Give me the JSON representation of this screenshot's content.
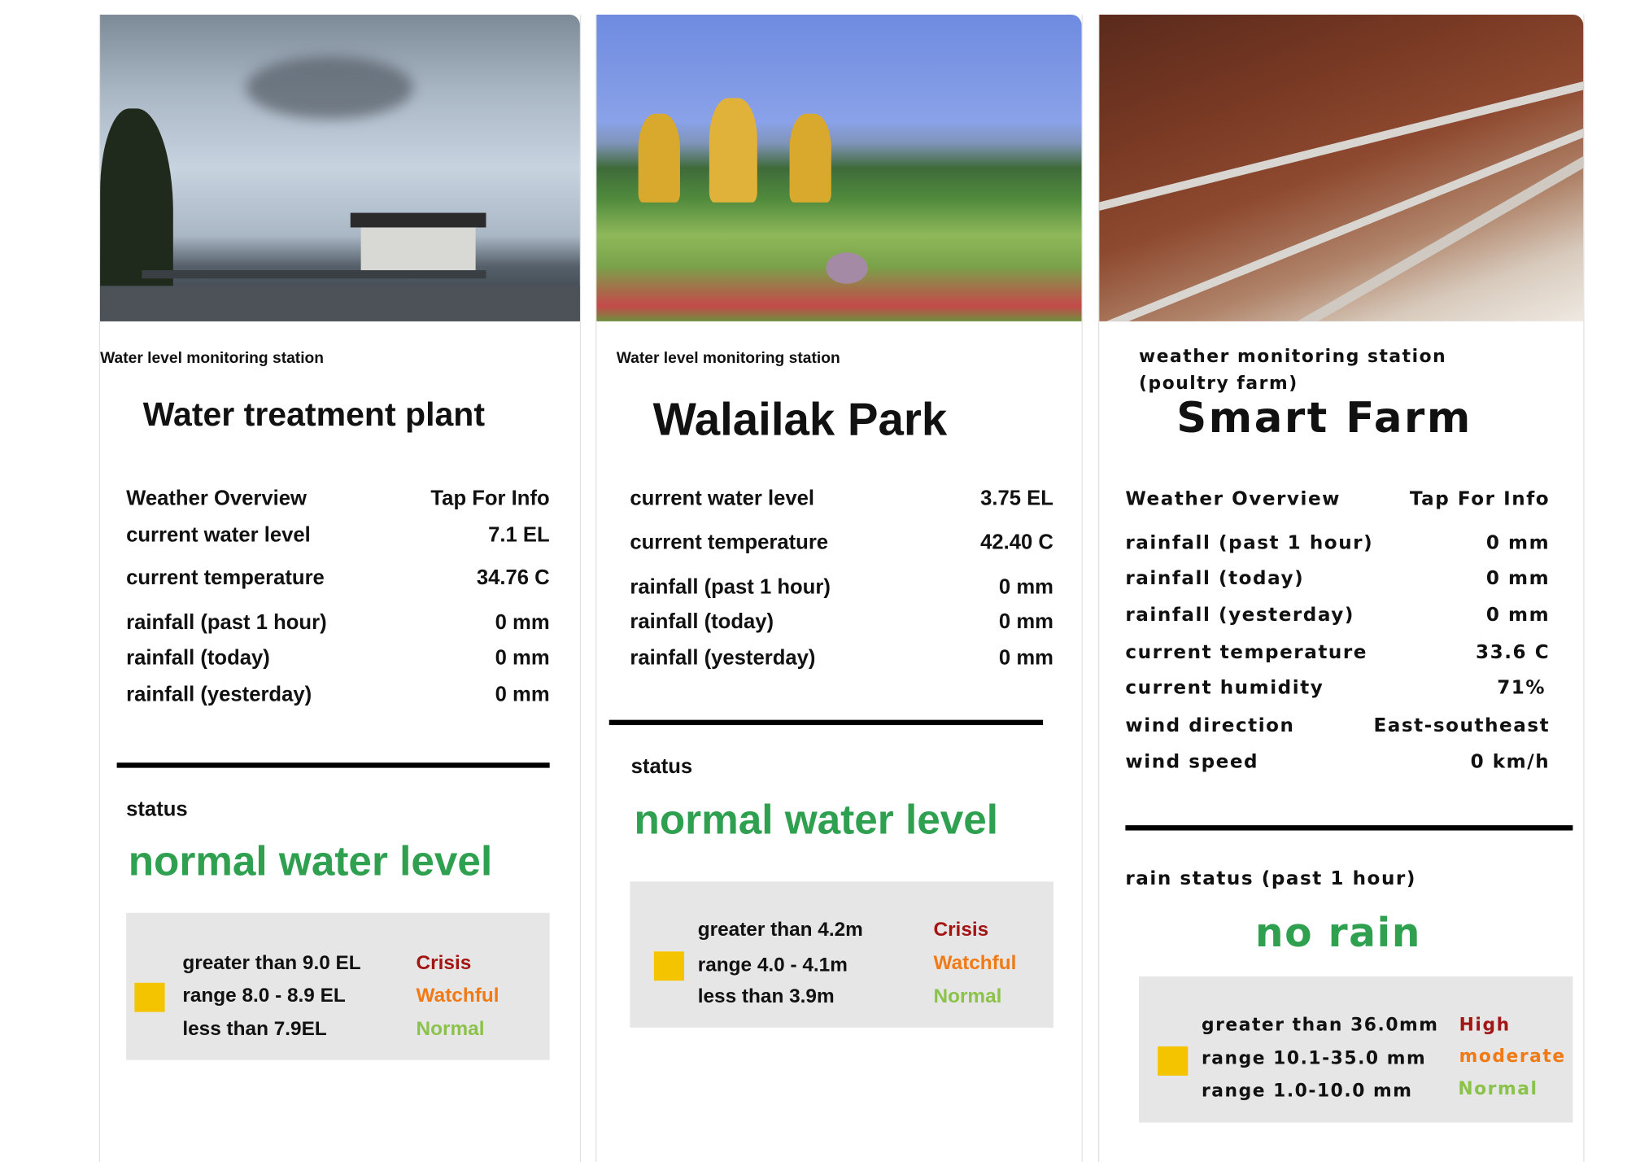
{
  "colors": {
    "normal_status": "#2ea04f",
    "crisis": "#a31515",
    "watchful": "#f07a16",
    "normal": "#8bc34a",
    "indicator": "#f5c400",
    "legend_bg": "#e6e6e6"
  },
  "cards": [
    {
      "image": "water-treatment-plant-photo",
      "subtitle": "Water level monitoring station",
      "title": "Water treatment plant",
      "header": {
        "label": "Weather Overview",
        "action": "Tap For Info"
      },
      "rows": [
        {
          "label": "current water level",
          "value": "7.1 EL"
        },
        {
          "label": "current temperature",
          "value": "34.76 C"
        },
        {
          "label": "rainfall (past 1 hour)",
          "value": "0 mm"
        },
        {
          "label": "rainfall (today)",
          "value": "0 mm"
        },
        {
          "label": "rainfall (yesterday)",
          "value": "0 mm"
        }
      ],
      "status_label": "status",
      "status_value": "normal water level",
      "legend": [
        {
          "range": "greater than 9.0 EL",
          "level": "Crisis"
        },
        {
          "range": "range 8.0 - 8.9 EL",
          "level": "Watchful"
        },
        {
          "range": "less than 7.9EL",
          "level": "Normal"
        }
      ]
    },
    {
      "image": "walailak-park-photo",
      "subtitle": "Water level monitoring station",
      "title": "Walailak Park",
      "rows": [
        {
          "label": "current water level",
          "value": "3.75 EL"
        },
        {
          "label": "current temperature",
          "value": "42.40 C"
        },
        {
          "label": "rainfall (past 1 hour)",
          "value": "0 mm"
        },
        {
          "label": "rainfall (today)",
          "value": "0 mm"
        },
        {
          "label": "rainfall (yesterday)",
          "value": "0 mm"
        }
      ],
      "status_label": "status",
      "status_value": "normal water level",
      "legend": [
        {
          "range": "greater than 4.2m",
          "level": "Crisis"
        },
        {
          "range": "range 4.0 - 4.1m",
          "level": "Watchful"
        },
        {
          "range": "less than 3.9m",
          "level": "Normal"
        }
      ]
    },
    {
      "image": "poultry-farm-photo",
      "subtitle_line1": "weather monitoring station",
      "subtitle_line2": "(poultry farm)",
      "title": "Smart Farm",
      "header": {
        "label": "Weather Overview",
        "action": "Tap For Info"
      },
      "rows": [
        {
          "label": "rainfall (past 1 hour)",
          "value": "0 mm"
        },
        {
          "label": "rainfall (today)",
          "value": "0 mm"
        },
        {
          "label": "rainfall (yesterday)",
          "value": "0 mm"
        },
        {
          "label": "current temperature",
          "value": "33.6 C"
        },
        {
          "label": "current humidity",
          "value": "71%"
        },
        {
          "label": "wind direction",
          "value": "East-southeast"
        },
        {
          "label": "wind speed",
          "value": "0 km/h"
        }
      ],
      "status_label": "rain status (past 1 hour)",
      "status_value": "no rain",
      "legend": [
        {
          "range": "greater than 36.0mm",
          "level": "High"
        },
        {
          "range": "range 10.1-35.0 mm",
          "level": "moderate"
        },
        {
          "range": "range 1.0-10.0 mm",
          "level": "Normal"
        }
      ]
    }
  ]
}
